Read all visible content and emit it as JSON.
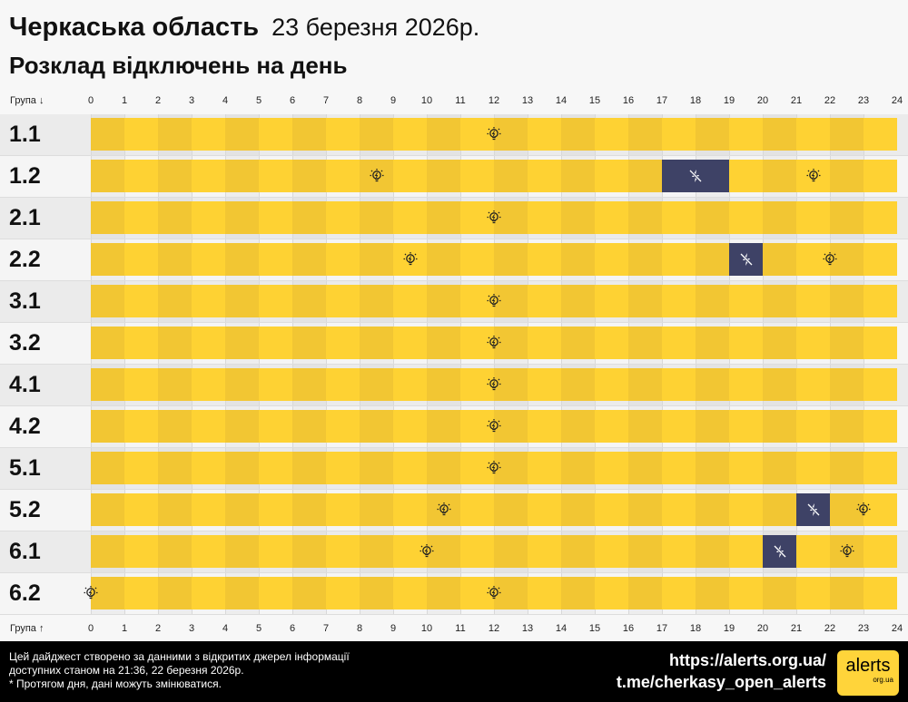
{
  "header": {
    "region": "Черкаська область",
    "date": "23 березня 2026р.",
    "subtitle": "Розклад відключень на день"
  },
  "axis": {
    "top_label": "Група ↓",
    "bottom_label": "Група ↑",
    "hours": [
      "0",
      "1",
      "2",
      "3",
      "4",
      "5",
      "6",
      "7",
      "8",
      "9",
      "10",
      "11",
      "12",
      "13",
      "14",
      "15",
      "16",
      "17",
      "18",
      "19",
      "20",
      "21",
      "22",
      "23",
      "24"
    ]
  },
  "colors": {
    "power_on_dark": "#f2c633",
    "power_on_light": "#fed233",
    "power_off": "#3e4266",
    "row_bg_a": "#ebebeb",
    "row_bg_b": "#f5f5f5"
  },
  "groups": [
    {
      "name": "1.1",
      "outages": [],
      "bulbs": [
        12
      ]
    },
    {
      "name": "1.2",
      "outages": [
        [
          17,
          19
        ]
      ],
      "bulbs": [
        8.5,
        21.5
      ]
    },
    {
      "name": "2.1",
      "outages": [],
      "bulbs": [
        12
      ]
    },
    {
      "name": "2.2",
      "outages": [
        [
          19,
          20
        ]
      ],
      "bulbs": [
        9.5,
        22
      ]
    },
    {
      "name": "3.1",
      "outages": [],
      "bulbs": [
        12
      ]
    },
    {
      "name": "3.2",
      "outages": [],
      "bulbs": [
        12
      ]
    },
    {
      "name": "4.1",
      "outages": [],
      "bulbs": [
        12
      ]
    },
    {
      "name": "4.2",
      "outages": [],
      "bulbs": [
        12
      ]
    },
    {
      "name": "5.1",
      "outages": [],
      "bulbs": [
        12
      ]
    },
    {
      "name": "5.2",
      "outages": [
        [
          21,
          22
        ]
      ],
      "bulbs": [
        10.5,
        23
      ]
    },
    {
      "name": "6.1",
      "outages": [
        [
          20,
          21
        ]
      ],
      "bulbs": [
        10,
        22.5
      ]
    },
    {
      "name": "6.2",
      "outages": [],
      "bulbs": [
        0,
        12
      ]
    }
  ],
  "footer": {
    "line1": "Цей дайджест створено за данними з відкритих джерел інформації",
    "line2": "доступних станом на 21:36, 22 березня 2026р.",
    "line3": "* Протягом дня, дані можуть змінюватися.",
    "url": "https://alerts.org.ua/",
    "telegram": "t.me/cherkasy_open_alerts",
    "logo_text": "alerts",
    "logo_sub": "org.ua"
  }
}
